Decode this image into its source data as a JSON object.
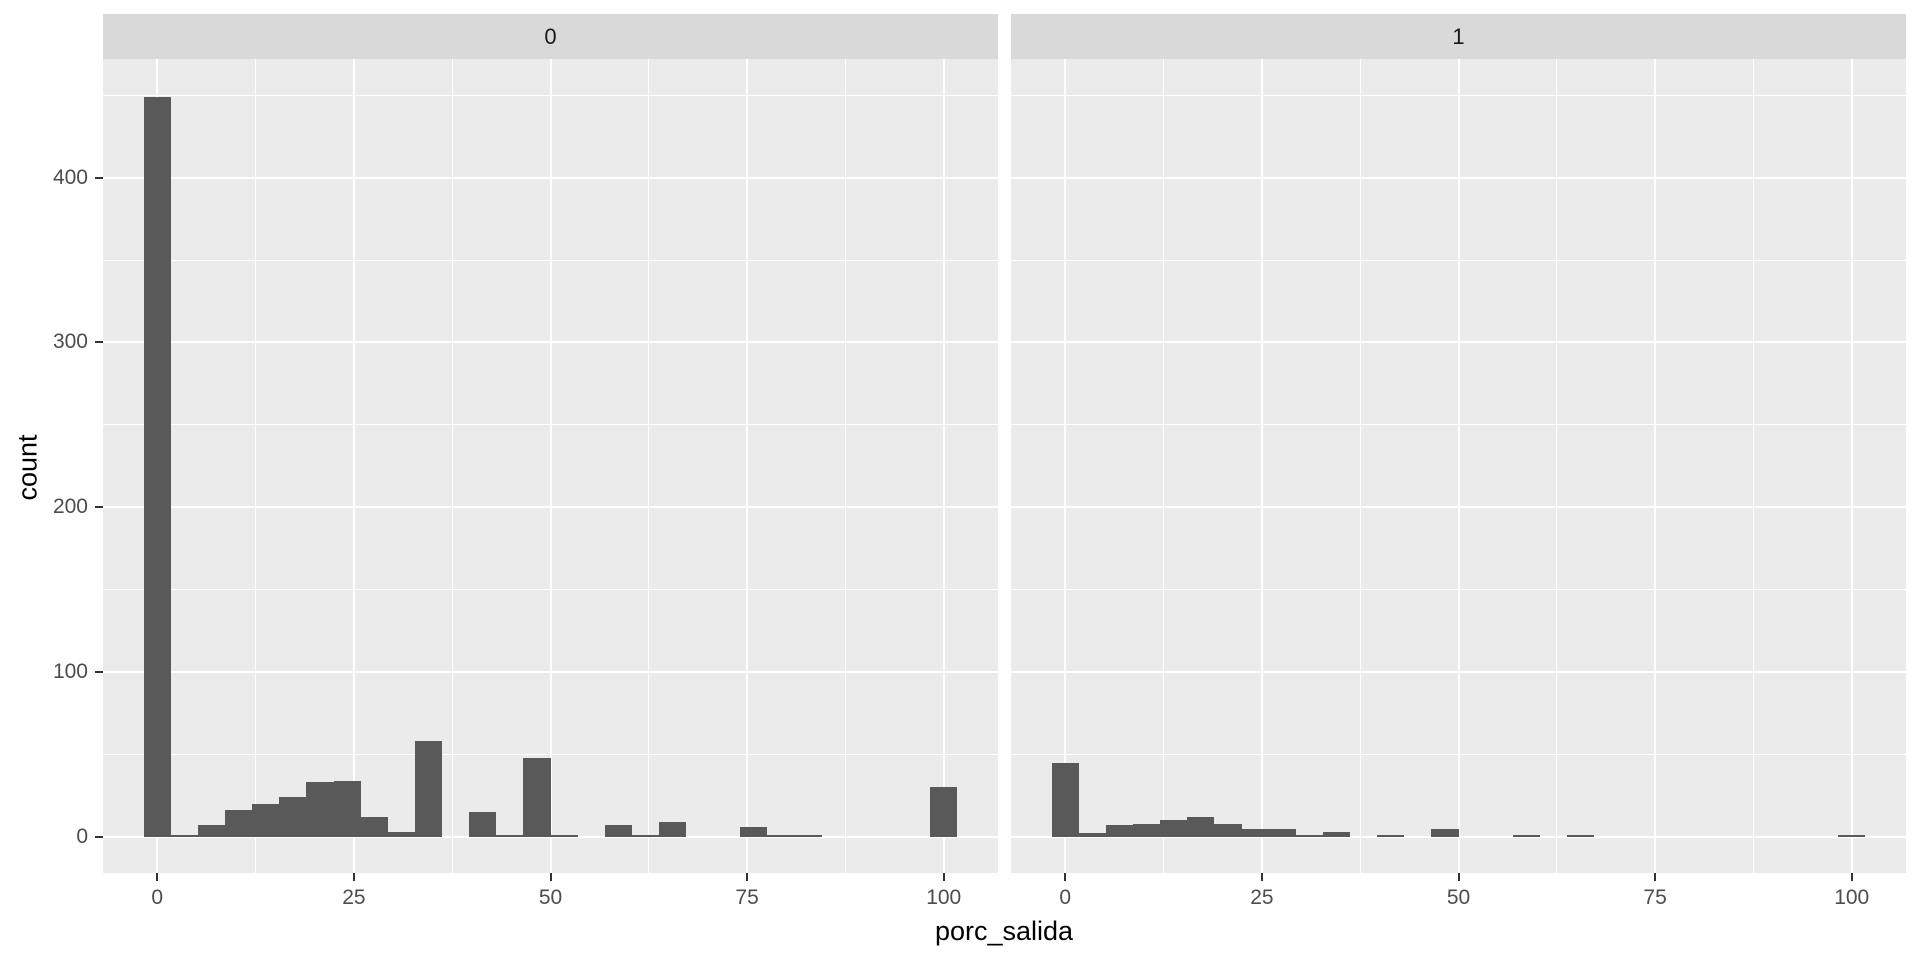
{
  "figure": {
    "xlabel": "porc_salida",
    "ylabel": "count"
  },
  "chart_data": {
    "type": "histogram",
    "title": "",
    "xlabel": "porc_salida",
    "ylabel": "count",
    "facet_labels": [
      "0",
      "1"
    ],
    "bin_width": 3.448,
    "x_ticks": [
      0,
      25,
      50,
      75,
      100
    ],
    "y_ticks": [
      0,
      100,
      200,
      300,
      400
    ],
    "x_minor_gridlines": [
      12.5,
      37.5,
      62.5,
      87.5
    ],
    "y_minor_gridlines": [
      50,
      150,
      250,
      350,
      450
    ],
    "xlim": [
      -6.9,
      106.9
    ],
    "ylim": [
      -22,
      472
    ],
    "grid": "on",
    "legend_position": "none",
    "facets": [
      {
        "label": "0",
        "bins": [
          {
            "x": 0,
            "count": 449
          },
          {
            "x": 3.45,
            "count": 1
          },
          {
            "x": 6.9,
            "count": 7
          },
          {
            "x": 10.34,
            "count": 16
          },
          {
            "x": 13.79,
            "count": 20
          },
          {
            "x": 17.24,
            "count": 24
          },
          {
            "x": 20.69,
            "count": 33
          },
          {
            "x": 24.14,
            "count": 34
          },
          {
            "x": 27.59,
            "count": 12
          },
          {
            "x": 31.03,
            "count": 3
          },
          {
            "x": 34.48,
            "count": 58
          },
          {
            "x": 41.38,
            "count": 15
          },
          {
            "x": 44.83,
            "count": 1
          },
          {
            "x": 48.28,
            "count": 48
          },
          {
            "x": 51.72,
            "count": 1
          },
          {
            "x": 58.62,
            "count": 7
          },
          {
            "x": 62.07,
            "count": 1
          },
          {
            "x": 65.52,
            "count": 9
          },
          {
            "x": 75.86,
            "count": 6
          },
          {
            "x": 79.31,
            "count": 1
          },
          {
            "x": 82.76,
            "count": 1
          },
          {
            "x": 100,
            "count": 30
          }
        ]
      },
      {
        "label": "1",
        "bins": [
          {
            "x": 0,
            "count": 45
          },
          {
            "x": 3.45,
            "count": 2
          },
          {
            "x": 6.9,
            "count": 7
          },
          {
            "x": 10.34,
            "count": 8
          },
          {
            "x": 13.79,
            "count": 10
          },
          {
            "x": 17.24,
            "count": 12
          },
          {
            "x": 20.69,
            "count": 8
          },
          {
            "x": 24.14,
            "count": 5
          },
          {
            "x": 27.59,
            "count": 5
          },
          {
            "x": 31.03,
            "count": 1
          },
          {
            "x": 34.48,
            "count": 3
          },
          {
            "x": 41.38,
            "count": 1
          },
          {
            "x": 48.28,
            "count": 5
          },
          {
            "x": 58.62,
            "count": 1
          },
          {
            "x": 65.52,
            "count": 1
          },
          {
            "x": 100,
            "count": 1
          }
        ]
      }
    ],
    "colors": {
      "bar": "#595959",
      "panel_background": "#EBEBEB",
      "strip_background": "#D9D9D9",
      "gridline": "#FFFFFF",
      "axis_text": "#4D4D4D",
      "tick_mark": "#333333",
      "axis_title": "#000000",
      "figure_background": "#FFFFFF"
    }
  }
}
